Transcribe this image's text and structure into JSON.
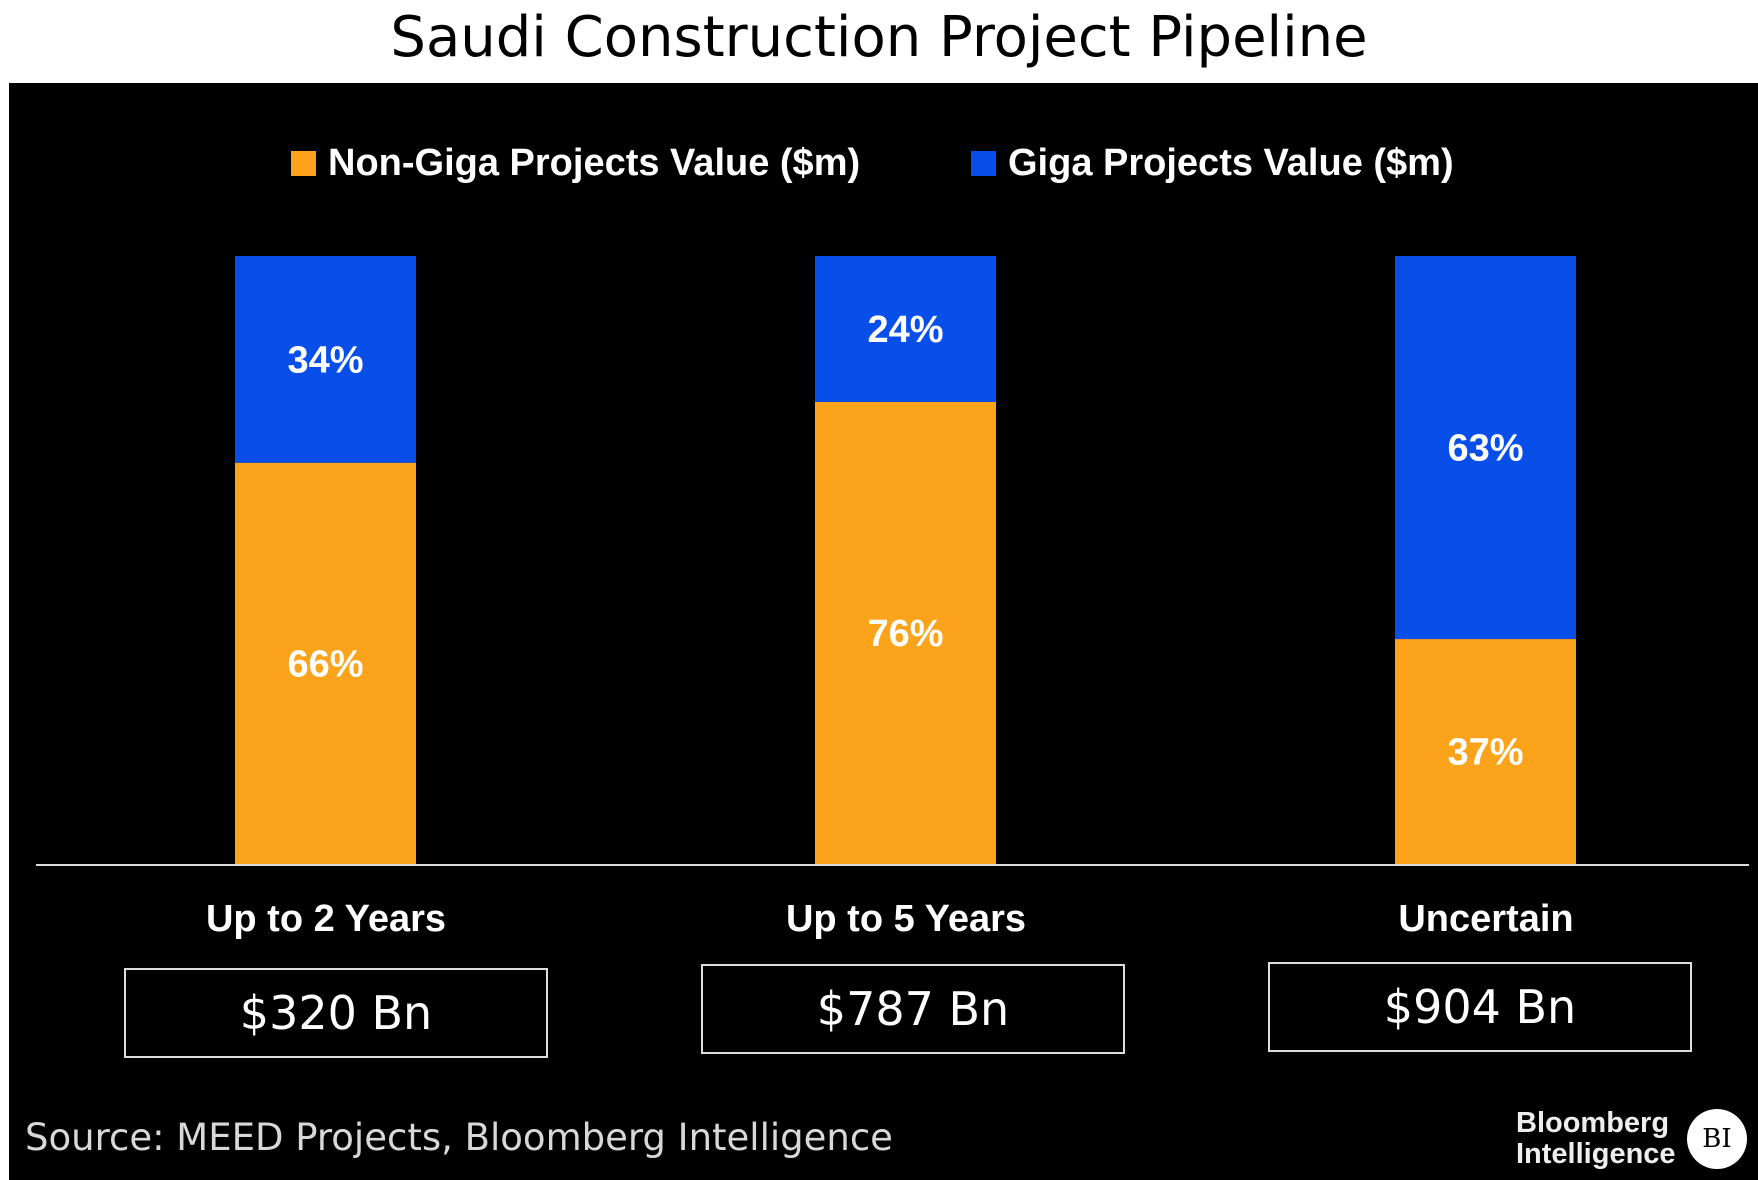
{
  "chart_data": {
    "type": "bar",
    "stacked": true,
    "normalized": true,
    "title": "Saudi Construction Project Pipeline",
    "categories": [
      "Up to 2 Years",
      "Up to 5 Years",
      "Uncertain"
    ],
    "totals": [
      "$320 Bn",
      "$787 Bn",
      "$904 Bn"
    ],
    "series": [
      {
        "name": "Non-Giga Projects Value ($m)",
        "color": "#FBA31A",
        "values": [
          66,
          76,
          37
        ],
        "labels": [
          "66%",
          "76%",
          "37%"
        ]
      },
      {
        "name": "Giga Projects Value ($m)",
        "color": "#074FE8",
        "values": [
          34,
          24,
          63
        ],
        "labels": [
          "34%",
          "24%",
          "63%"
        ]
      }
    ],
    "ylim": [
      0,
      100
    ],
    "xlabel": "",
    "ylabel": "",
    "grid": false,
    "legend": "top"
  },
  "source": "Source: MEED Projects, Bloomberg Intelligence",
  "logo": {
    "line1": "Bloomberg",
    "line2": "Intelligence",
    "badge": "BI"
  }
}
